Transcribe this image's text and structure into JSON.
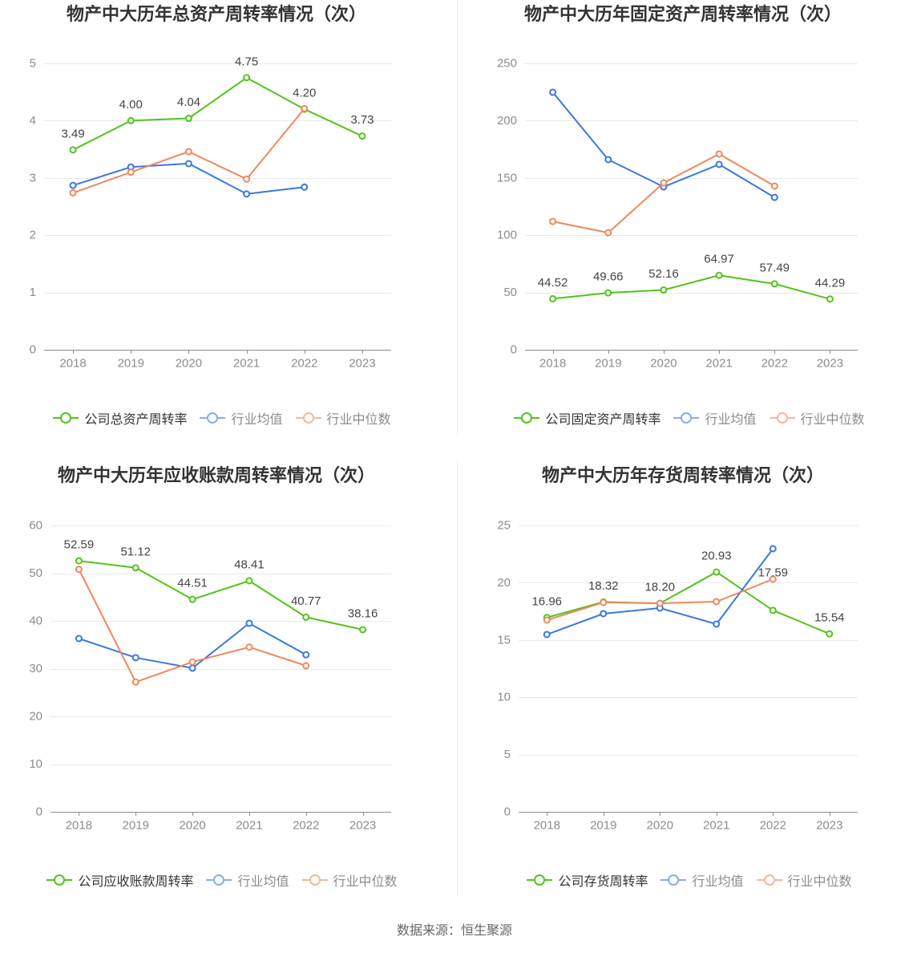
{
  "chart_data": [
    {
      "type": "line",
      "title": "物产中大历年总资产周转率情况（次）",
      "categories": [
        "2018",
        "2019",
        "2020",
        "2021",
        "2022",
        "2023"
      ],
      "ylim": [
        0,
        5
      ],
      "yticks": [
        0,
        1,
        2,
        3,
        4,
        5
      ],
      "grid": true,
      "legend": "bottom",
      "series": [
        {
          "name": "公司总资产周转率",
          "color": "#52c41a",
          "data_labels": true,
          "values": [
            3.49,
            4.0,
            4.04,
            4.75,
            4.2,
            3.73
          ]
        },
        {
          "name": "行业均值",
          "color": "#3a78e0",
          "values": [
            2.87,
            3.19,
            3.25,
            2.72,
            2.84,
            null
          ]
        },
        {
          "name": "行业中位数",
          "color": "#f0885a",
          "values": [
            2.74,
            3.1,
            3.46,
            2.98,
            4.21,
            null
          ]
        }
      ]
    },
    {
      "type": "line",
      "title": "物产中大历年固定资产周转率情况（次）",
      "categories": [
        "2018",
        "2019",
        "2020",
        "2021",
        "2022",
        "2023"
      ],
      "ylim": [
        0,
        250
      ],
      "yticks": [
        0,
        50,
        100,
        150,
        200,
        250
      ],
      "grid": true,
      "legend": "bottom",
      "series": [
        {
          "name": "公司固定资产周转率",
          "color": "#52c41a",
          "data_labels": true,
          "values": [
            44.52,
            49.66,
            52.16,
            64.97,
            57.49,
            44.29
          ]
        },
        {
          "name": "行业均值",
          "color": "#3a78e0",
          "values": [
            224.8,
            166.0,
            142.2,
            161.8,
            133.0,
            null
          ]
        },
        {
          "name": "行业中位数",
          "color": "#f0885a",
          "values": [
            112.0,
            102.2,
            145.7,
            170.9,
            142.9,
            null
          ]
        }
      ]
    },
    {
      "type": "line",
      "title": "物产中大历年应收账款周转率情况（次）",
      "categories": [
        "2018",
        "2019",
        "2020",
        "2021",
        "2022",
        "2023"
      ],
      "ylim": [
        0,
        60
      ],
      "yticks": [
        0,
        10,
        20,
        30,
        40,
        50,
        60
      ],
      "grid": true,
      "legend": "bottom",
      "series": [
        {
          "name": "公司应收账款周转率",
          "color": "#52c41a",
          "data_labels": true,
          "values": [
            52.59,
            51.12,
            44.51,
            48.41,
            40.77,
            38.16
          ]
        },
        {
          "name": "行业均值",
          "color": "#3a78e0",
          "values": [
            36.3,
            32.3,
            30.1,
            39.5,
            32.9,
            null
          ]
        },
        {
          "name": "行业中位数",
          "color": "#f0885a",
          "values": [
            50.8,
            27.2,
            31.4,
            34.5,
            30.6,
            null
          ]
        }
      ]
    },
    {
      "type": "line",
      "title": "物产中大历年存货周转率情况（次）",
      "categories": [
        "2018",
        "2019",
        "2020",
        "2021",
        "2022",
        "2023"
      ],
      "ylim": [
        0,
        25
      ],
      "yticks": [
        0,
        5,
        10,
        15,
        20,
        25
      ],
      "grid": true,
      "legend": "bottom",
      "series": [
        {
          "name": "公司存货周转率",
          "color": "#52c41a",
          "data_labels": true,
          "values": [
            16.96,
            18.32,
            18.2,
            20.93,
            17.59,
            15.54
          ]
        },
        {
          "name": "行业均值",
          "color": "#3a78e0",
          "values": [
            15.48,
            17.3,
            17.79,
            16.39,
            22.97,
            null
          ]
        },
        {
          "name": "行业中位数",
          "color": "#f0885a",
          "values": [
            16.74,
            18.28,
            18.21,
            18.35,
            20.31,
            null
          ]
        }
      ]
    }
  ],
  "footer": {
    "source": "数据来源：恒生聚源"
  }
}
